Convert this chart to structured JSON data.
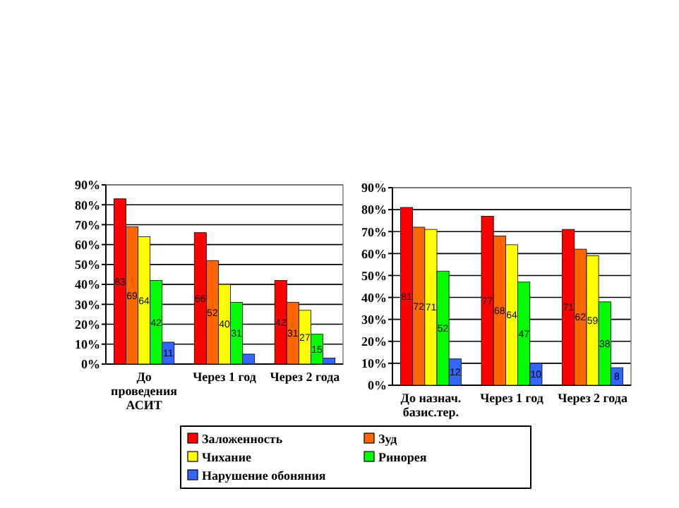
{
  "chart_data": [
    {
      "type": "bar",
      "categories": [
        "До проведения АСИТ",
        "Через 1 год",
        "Через 2 года"
      ],
      "ylim": [
        0,
        90
      ],
      "yticks": [
        {
          "value": 0,
          "label": "0%"
        },
        {
          "value": 10,
          "label": "10%"
        },
        {
          "value": 20,
          "label": "20%"
        },
        {
          "value": 30,
          "label": "30%"
        },
        {
          "value": 40,
          "label": "40%"
        },
        {
          "value": 50,
          "label": "50%"
        },
        {
          "value": 60,
          "label": "60%"
        },
        {
          "value": 70,
          "label": "70%"
        },
        {
          "value": 80,
          "label": "80%"
        },
        {
          "value": 90,
          "label": "90%"
        }
      ],
      "grid": "y",
      "series": [
        {
          "color": "#ff0000",
          "values": [
            83,
            66,
            42
          ],
          "value_labels": [
            "83",
            "66",
            "42"
          ]
        },
        {
          "color": "#ff6600",
          "values": [
            69,
            52,
            31
          ],
          "value_labels": [
            "69",
            "52",
            "31"
          ]
        },
        {
          "color": "#ffff00",
          "values": [
            64,
            40,
            27
          ],
          "value_labels": [
            "64",
            "40",
            "27"
          ]
        },
        {
          "color": "#00ff00",
          "values": [
            42,
            31,
            15
          ],
          "value_labels": [
            "42",
            "31",
            "15"
          ]
        },
        {
          "color": "#3366ff",
          "values": [
            11,
            5,
            3
          ],
          "value_labels": [
            "11",
            null,
            null
          ]
        }
      ]
    },
    {
      "type": "bar",
      "categories": [
        "До назнач. базис.тер.",
        "Через 1 год",
        "Через 2 года"
      ],
      "ylim": [
        0,
        90
      ],
      "yticks": [
        {
          "value": 0,
          "label": "0%"
        },
        {
          "value": 10,
          "label": "10%"
        },
        {
          "value": 20,
          "label": "20%"
        },
        {
          "value": 30,
          "label": "30%"
        },
        {
          "value": 40,
          "label": "40%"
        },
        {
          "value": 50,
          "label": "50%"
        },
        {
          "value": 60,
          "label": "60%"
        },
        {
          "value": 70,
          "label": "70%"
        },
        {
          "value": 80,
          "label": "80%"
        },
        {
          "value": 90,
          "label": "90%"
        }
      ],
      "grid": "y",
      "legend": "bottom",
      "data_labels": true,
      "series": [
        {
          "name": "Заложенность",
          "color": "#ff0000",
          "values": [
            81,
            77,
            71
          ]
        },
        {
          "name": "Зуд",
          "color": "#ff6600",
          "values": [
            72,
            68,
            62
          ]
        },
        {
          "name": "Чихание",
          "color": "#ffff00",
          "values": [
            71,
            64,
            59
          ]
        },
        {
          "name": "Ринорея",
          "color": "#00ff00",
          "values": [
            52,
            47,
            38
          ]
        },
        {
          "name": "Нарушение обоняния",
          "color": "#3366ff",
          "values": [
            12,
            10,
            8
          ]
        }
      ]
    }
  ]
}
